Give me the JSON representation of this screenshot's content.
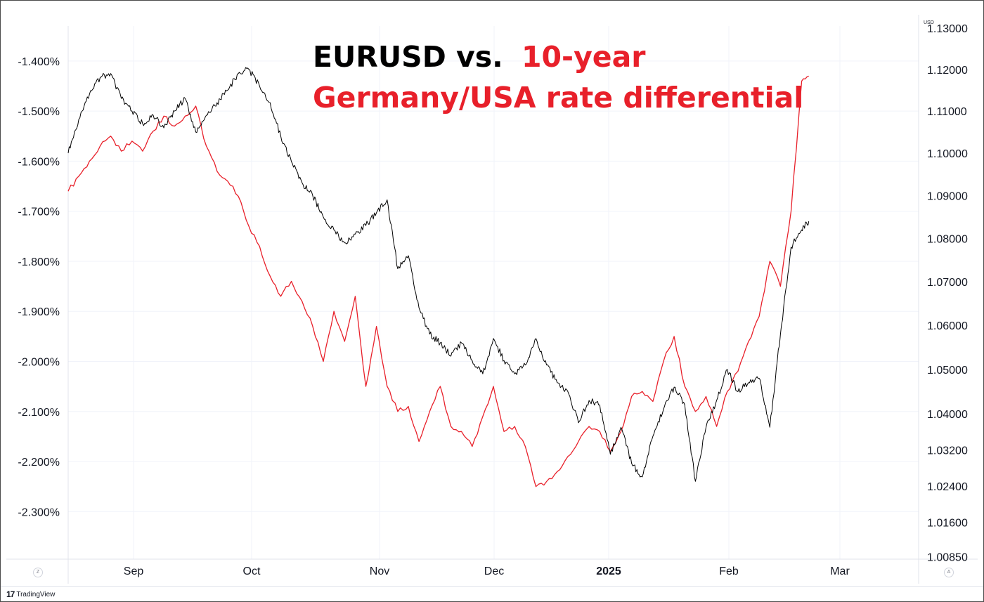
{
  "chart_data": {
    "type": "line",
    "title": {
      "line1_black": "EURUSD vs.",
      "line1_red": "10-year",
      "line2_red": "Germany/USA rate differential"
    },
    "x_ticks": [
      {
        "label": "Sep",
        "bold": false
      },
      {
        "label": "Oct",
        "bold": false
      },
      {
        "label": "Nov",
        "bold": false
      },
      {
        "label": "Dec",
        "bold": false
      },
      {
        "label": "2025",
        "bold": true
      },
      {
        "label": "Feb",
        "bold": false
      },
      {
        "label": "Mar",
        "bold": false
      }
    ],
    "left_axis": {
      "ticks": [
        "-1.400%",
        "-1.500%",
        "-1.600%",
        "-1.700%",
        "-1.800%",
        "-1.900%",
        "-2.000%",
        "-2.100%",
        "-2.200%",
        "-2.300%"
      ],
      "range": [
        -2.395,
        -1.33
      ]
    },
    "right_axis": {
      "unit_label": "USD",
      "ticks": [
        "1.13000",
        "1.12000",
        "1.11000",
        "1.10000",
        "1.09000",
        "1.08000",
        "1.07000",
        "1.06000",
        "1.05000",
        "1.04000",
        "1.03200",
        "1.02400",
        "1.01600",
        "1.00850"
      ],
      "scale": "log",
      "range": [
        1.008,
        1.1305
      ]
    },
    "series": [
      {
        "name": "EURUSD",
        "axis": "right",
        "color": "#000000",
        "x": [
          0,
          3,
          6,
          9,
          12,
          15,
          18,
          21,
          24,
          27,
          30,
          33,
          36,
          39,
          42,
          45,
          48,
          51,
          54,
          57,
          60,
          63,
          66,
          69,
          72,
          75,
          78,
          81,
          84,
          87,
          90,
          93,
          96,
          99,
          102,
          105,
          108,
          111,
          114,
          117,
          120,
          123,
          126,
          129,
          132,
          135,
          138,
          141,
          144,
          147,
          150,
          153,
          156,
          159,
          162,
          165,
          168,
          171,
          174,
          177,
          180,
          183,
          186,
          189,
          192,
          195,
          198,
          201,
          204,
          207,
          209
        ],
        "y": [
          1.1,
          1.108,
          1.114,
          1.118,
          1.119,
          1.113,
          1.11,
          1.107,
          1.109,
          1.106,
          1.11,
          1.113,
          1.105,
          1.109,
          1.112,
          1.115,
          1.119,
          1.12,
          1.116,
          1.112,
          1.104,
          1.098,
          1.093,
          1.09,
          1.085,
          1.082,
          1.079,
          1.081,
          1.083,
          1.086,
          1.089,
          1.073,
          1.076,
          1.064,
          1.058,
          1.056,
          1.053,
          1.056,
          1.052,
          1.049,
          1.057,
          1.052,
          1.049,
          1.051,
          1.057,
          1.051,
          1.047,
          1.045,
          1.038,
          1.043,
          1.042,
          1.031,
          1.037,
          1.029,
          1.026,
          1.035,
          1.041,
          1.046,
          1.042,
          1.025,
          1.037,
          1.043,
          1.05,
          1.045,
          1.047,
          1.048,
          1.037,
          1.058,
          1.078,
          1.082,
          1.084
        ]
      },
      {
        "name": "Germany/USA rate differential",
        "axis": "left",
        "color": "#e8202a",
        "x": [
          0,
          3,
          6,
          9,
          12,
          15,
          18,
          21,
          24,
          27,
          30,
          33,
          36,
          39,
          42,
          45,
          48,
          51,
          54,
          57,
          60,
          63,
          66,
          69,
          72,
          75,
          78,
          81,
          84,
          87,
          90,
          93,
          96,
          99,
          102,
          105,
          108,
          111,
          114,
          117,
          120,
          123,
          126,
          129,
          132,
          135,
          138,
          141,
          144,
          147,
          150,
          153,
          156,
          159,
          162,
          165,
          168,
          171,
          174,
          177,
          180,
          183,
          186,
          189,
          192,
          195,
          198,
          201,
          204,
          207,
          209
        ],
        "y": [
          -1.66,
          -1.63,
          -1.6,
          -1.57,
          -1.55,
          -1.58,
          -1.56,
          -1.58,
          -1.54,
          -1.51,
          -1.53,
          -1.51,
          -1.49,
          -1.57,
          -1.62,
          -1.64,
          -1.67,
          -1.73,
          -1.77,
          -1.83,
          -1.87,
          -1.84,
          -1.88,
          -1.93,
          -2.0,
          -1.9,
          -1.96,
          -1.87,
          -2.05,
          -1.93,
          -2.05,
          -2.1,
          -2.09,
          -2.16,
          -2.1,
          -2.05,
          -2.13,
          -2.14,
          -2.17,
          -2.11,
          -2.05,
          -2.14,
          -2.13,
          -2.17,
          -2.25,
          -2.24,
          -2.22,
          -2.19,
          -2.16,
          -2.13,
          -2.14,
          -2.18,
          -2.14,
          -2.07,
          -2.06,
          -2.08,
          -2.0,
          -1.95,
          -2.05,
          -2.1,
          -2.07,
          -2.13,
          -2.06,
          -2.02,
          -1.96,
          -1.91,
          -1.8,
          -1.85,
          -1.7,
          -1.44,
          -1.43
        ]
      }
    ],
    "xlim": [
      0,
      240
    ]
  },
  "footer": {
    "brand": "TradingView",
    "left_btn": "Z",
    "right_btn": "A"
  }
}
